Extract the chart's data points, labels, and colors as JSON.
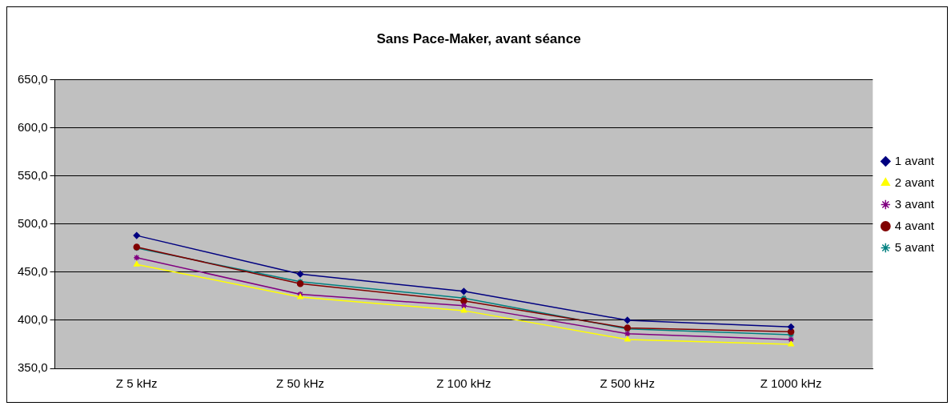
{
  "chart_data": {
    "type": "line",
    "title": "Sans Pace-Maker, avant séance",
    "categories": [
      "Z 5 kHz",
      "Z 50 kHz",
      "Z 100 kHz",
      "Z 500 kHz",
      "Z 1000 kHz"
    ],
    "series": [
      {
        "name": "1 avant",
        "color": "#000080",
        "marker": "diamond",
        "values": [
          488,
          448,
          430,
          400,
          393
        ]
      },
      {
        "name": "2 avant",
        "color": "#ffff00",
        "marker": "triangle",
        "values": [
          458,
          424,
          410,
          380,
          375
        ]
      },
      {
        "name": "3 avant",
        "color": "#800080",
        "marker": "cross",
        "values": [
          465,
          427,
          415,
          386,
          380
        ]
      },
      {
        "name": "4 avant",
        "color": "#800000",
        "marker": "circle",
        "values": [
          476,
          438,
          420,
          392,
          388
        ]
      },
      {
        "name": "5 avant",
        "color": "#008080",
        "marker": "cross",
        "values": [
          475,
          440,
          423,
          391,
          385
        ]
      }
    ],
    "ylim": [
      350,
      650
    ],
    "yticks": [
      {
        "value": 350,
        "label": "350,0"
      },
      {
        "value": 400,
        "label": "400,0"
      },
      {
        "value": 450,
        "label": "450,0"
      },
      {
        "value": 500,
        "label": "500,0"
      },
      {
        "value": 550,
        "label": "550,0"
      },
      {
        "value": 600,
        "label": "600,0"
      },
      {
        "value": 650,
        "label": "650,0"
      }
    ],
    "grid": "y",
    "legend": "right"
  }
}
